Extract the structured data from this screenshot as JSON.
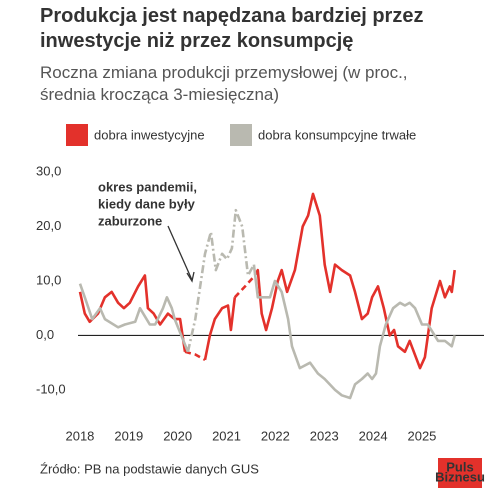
{
  "chart_data": {
    "type": "line",
    "title": "Produkcja jest napędzana bardziej przez inwestycje niż przez konsumpcję",
    "subtitle": "Roczna zmiana produkcji przemysłowej (w proc., średnia krocząca 3-miesięczna)",
    "annotation": [
      "okres pandemii,",
      "kiedy dane były",
      "zaburzone"
    ],
    "source": "Źródło: PB na podstawie danych GUS",
    "logo": [
      "Puls",
      "Biznesu"
    ],
    "xlim": [
      2017.96,
      2026.27
    ],
    "xticks": [
      2018,
      2019,
      2020,
      2021,
      2022,
      2023,
      2024,
      2025
    ],
    "ylim": [
      -15.9,
      31.3
    ],
    "yticks": [
      {
        "value": 30,
        "label": "30,0"
      },
      {
        "value": 20,
        "label": "20,0"
      },
      {
        "value": 10,
        "label": "10,0"
      },
      {
        "value": 0,
        "label": "0,0"
      },
      {
        "value": -10,
        "label": "-10,0"
      }
    ],
    "grid": false,
    "zero_line": true,
    "series": [
      {
        "name": "dobra inwestycyjne",
        "color": "#e3312b",
        "dashed": [
          [
            2020.15,
            2020.56
          ],
          [
            2021.17,
            2021.58
          ]
        ],
        "x": [
          2018.0,
          2018.1,
          2018.2,
          2018.37,
          2018.51,
          2018.65,
          2018.78,
          2018.9,
          2019.02,
          2019.19,
          2019.33,
          2019.39,
          2019.51,
          2019.64,
          2019.8,
          2019.94,
          2020.05,
          2020.15,
          2020.36,
          2020.56,
          2020.66,
          2020.76,
          2020.91,
          2021.03,
          2021.09,
          2021.17,
          2021.38,
          2021.58,
          2021.64,
          2021.72,
          2021.81,
          2021.93,
          2022.05,
          2022.13,
          2022.24,
          2022.4,
          2022.56,
          2022.67,
          2022.77,
          2022.91,
          2023.01,
          2023.12,
          2023.22,
          2023.36,
          2023.53,
          2023.63,
          2023.77,
          2023.89,
          2023.98,
          2024.1,
          2024.22,
          2024.34,
          2024.43,
          2024.51,
          2024.65,
          2024.75,
          2024.96,
          2025.06,
          2025.2,
          2025.37,
          2025.47,
          2025.57,
          2025.61,
          2025.67
        ],
        "values": [
          8,
          4,
          2.5,
          4,
          7,
          8,
          6,
          5,
          6,
          9,
          11,
          5,
          4,
          2,
          4,
          3,
          3,
          -3,
          -3.5,
          -4.5,
          0,
          3,
          5,
          5.5,
          1,
          7,
          9,
          11,
          12,
          4,
          1,
          5,
          10,
          12,
          8,
          12,
          20,
          22,
          26,
          22,
          13,
          8,
          13,
          12,
          11,
          8,
          3,
          4,
          7,
          9,
          5,
          0,
          1,
          -2,
          -3,
          -1,
          -6,
          -4,
          5,
          10,
          7,
          9,
          8,
          12
        ]
      },
      {
        "name": "dobra konsumpcyjne trwałe",
        "color": "#b9b9b0",
        "dashed": [
          [
            2020.21,
            2021.56
          ]
        ],
        "x": [
          2018.0,
          2018.1,
          2018.25,
          2018.41,
          2018.51,
          2018.78,
          2018.92,
          2019.13,
          2019.23,
          2019.43,
          2019.54,
          2019.7,
          2019.78,
          2019.88,
          2019.94,
          2020.21,
          2020.36,
          2020.56,
          2020.68,
          2020.78,
          2020.91,
          2021.01,
          2021.11,
          2021.19,
          2021.32,
          2021.44,
          2021.56,
          2021.64,
          2021.79,
          2021.89,
          2021.99,
          2022.13,
          2022.26,
          2022.34,
          2022.42,
          2022.5,
          2022.71,
          2022.87,
          2023.01,
          2023.22,
          2023.36,
          2023.53,
          2023.63,
          2023.77,
          2023.89,
          2023.98,
          2024.06,
          2024.14,
          2024.26,
          2024.41,
          2024.55,
          2024.65,
          2024.75,
          2024.86,
          2025.0,
          2025.12,
          2025.33,
          2025.47,
          2025.61,
          2025.67
        ],
        "values": [
          9.5,
          7,
          3,
          5,
          3,
          1.5,
          2,
          2.5,
          5,
          2,
          2,
          5,
          7,
          5,
          3,
          -3,
          3,
          15,
          19,
          12,
          15,
          14,
          16,
          23,
          20,
          11,
          13,
          7,
          7,
          7,
          10,
          8,
          3,
          -2,
          -4,
          -6,
          -5,
          -7,
          -8,
          -10,
          -11,
          -11.5,
          -9,
          -8,
          -7,
          -8,
          -7,
          -2,
          2,
          5,
          6,
          5.5,
          6,
          5,
          2,
          2,
          -1,
          -1,
          -2,
          0
        ]
      }
    ]
  }
}
